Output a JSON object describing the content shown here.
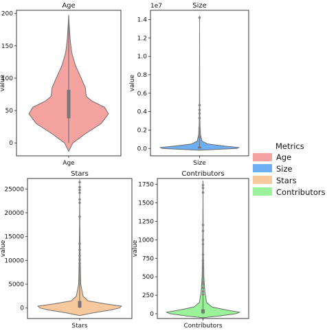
{
  "chart_data": [
    {
      "type": "violin",
      "title": "Age",
      "xlabel": "",
      "ylabel": "value",
      "category": "Age",
      "color": "#f4a3a1",
      "ylim": [
        -20,
        205
      ],
      "yticks": [
        0,
        50,
        100,
        150,
        200
      ],
      "offset_label": "",
      "density": [
        [
          -13,
          0.0
        ],
        [
          0,
          0.1
        ],
        [
          15,
          0.42
        ],
        [
          30,
          0.78
        ],
        [
          45,
          0.95
        ],
        [
          55,
          0.86
        ],
        [
          65,
          0.55
        ],
        [
          72,
          0.42
        ],
        [
          85,
          0.4
        ],
        [
          100,
          0.3
        ],
        [
          120,
          0.16
        ],
        [
          140,
          0.07
        ],
        [
          160,
          0.035
        ],
        [
          185,
          0.01
        ],
        [
          198,
          0.0
        ]
      ],
      "quartiles": [
        38,
        57,
        82
      ],
      "whiskers": [
        0,
        196
      ],
      "outliers": []
    },
    {
      "type": "violin",
      "title": "Size",
      "xlabel": "",
      "ylabel": "value",
      "category": "Size",
      "color": "#6eaef2",
      "ylim": [
        -0.08,
        1.5
      ],
      "yticks": [
        0.0,
        0.2,
        0.4,
        0.6,
        0.8,
        1.0,
        1.2,
        1.4
      ],
      "offset_label": "1e7",
      "density": [
        [
          -0.02,
          0.0
        ],
        [
          -0.012,
          0.35
        ],
        [
          0.0,
          0.95
        ],
        [
          0.01,
          1.0
        ],
        [
          0.03,
          0.55
        ],
        [
          0.05,
          0.2
        ],
        [
          0.08,
          0.06
        ],
        [
          0.15,
          0.025
        ],
        [
          0.25,
          0.01
        ],
        [
          0.5,
          0.004
        ],
        [
          1.0,
          0.002
        ],
        [
          1.44,
          0.0
        ]
      ],
      "quartiles": [
        0.0,
        0.005,
        0.02
      ],
      "whiskers": [
        0.0,
        0.1
      ],
      "outliers": [
        0.12,
        0.14,
        0.16,
        0.2,
        0.22,
        0.33,
        0.38,
        0.42,
        0.47,
        1.42
      ]
    },
    {
      "type": "violin",
      "title": "Stars",
      "xlabel": "",
      "ylabel": "value",
      "category": "Stars",
      "color": "#f8c99c",
      "ylim": [
        -2200,
        27200
      ],
      "yticks": [
        0,
        5000,
        10000,
        15000,
        20000,
        25000
      ],
      "offset_label": "",
      "density": [
        [
          -1600,
          0.0
        ],
        [
          -1000,
          0.32
        ],
        [
          -400,
          0.75
        ],
        [
          0,
          0.95
        ],
        [
          400,
          1.0
        ],
        [
          900,
          0.6
        ],
        [
          1500,
          0.2
        ],
        [
          2500,
          0.08
        ],
        [
          5000,
          0.025
        ],
        [
          10000,
          0.012
        ],
        [
          18000,
          0.005
        ],
        [
          27000,
          0.0
        ]
      ],
      "quartiles": [
        100,
        500,
        1500
      ],
      "whiskers": [
        0,
        6500
      ],
      "outliers": [
        7500,
        8400,
        9400,
        10200,
        11000,
        12200,
        13500,
        19200,
        22100,
        22800,
        24200,
        24800,
        25400,
        26400
      ]
    },
    {
      "type": "violin",
      "title": "Contributors",
      "xlabel": "",
      "ylabel": "value",
      "category": "Contributors",
      "color": "#9af39a",
      "ylim": [
        -65,
        1830
      ],
      "yticks": [
        0,
        250,
        500,
        750,
        1000,
        1250,
        1500,
        1750
      ],
      "offset_label": "",
      "density": [
        [
          -55,
          0.0
        ],
        [
          -30,
          0.45
        ],
        [
          0,
          0.9
        ],
        [
          20,
          1.0
        ],
        [
          50,
          0.65
        ],
        [
          90,
          0.25
        ],
        [
          150,
          0.1
        ],
        [
          300,
          0.05
        ],
        [
          500,
          0.025
        ],
        [
          800,
          0.01
        ],
        [
          1200,
          0.005
        ],
        [
          1800,
          0.0
        ]
      ],
      "quartiles": [
        5,
        20,
        60
      ],
      "whiskers": [
        0,
        220
      ],
      "outliers": [
        260,
        300,
        350,
        400,
        430,
        480,
        520,
        560,
        600,
        650,
        720,
        800,
        940,
        1000,
        1120,
        1200,
        1640,
        1700,
        1740
      ]
    }
  ],
  "legend": {
    "title": "Metrics",
    "placement": "right",
    "items": [
      {
        "label": "Age",
        "color": "#f4a3a1"
      },
      {
        "label": "Size",
        "color": "#6eaef2"
      },
      {
        "label": "Stars",
        "color": "#f8c99c"
      },
      {
        "label": "Contributors",
        "color": "#9af39a"
      }
    ]
  }
}
